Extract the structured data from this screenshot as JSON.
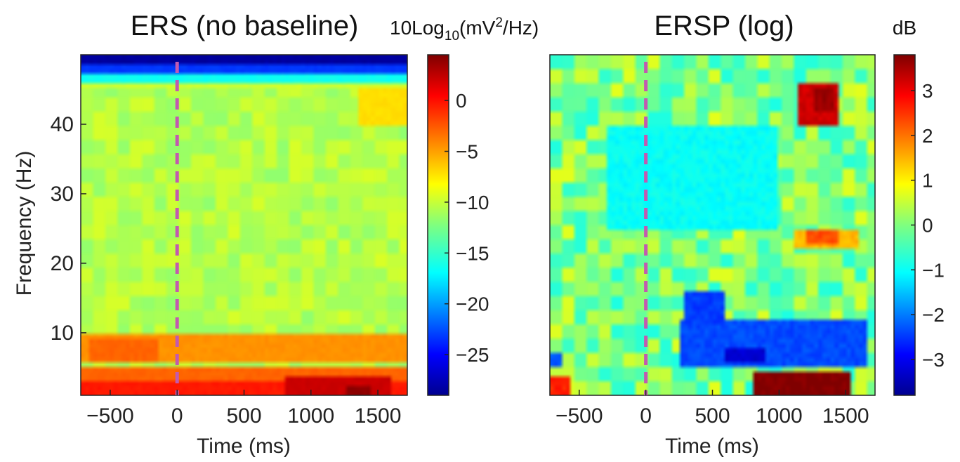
{
  "chart_data": [
    {
      "type": "heatmap",
      "title": "ERS (no baseline)",
      "xlabel": "Time (ms)",
      "ylabel": "Frequency (Hz)",
      "xlim": [
        -720,
        1720
      ],
      "ylim": [
        1,
        50
      ],
      "xticks": [
        -500,
        0,
        500,
        1000,
        1500
      ],
      "xtick_labels": [
        "−500",
        "0",
        "500",
        "1000",
        "1500"
      ],
      "yticks": [
        10,
        20,
        30,
        40
      ],
      "ytick_labels": [
        "10",
        "20",
        "30",
        "40"
      ],
      "colorbar": {
        "label": "10Log10(mV2/Hz)",
        "label_parts": {
          "base": "10Log",
          "sub": "10",
          "mid": "(mV",
          "sup": "2",
          "end": "/Hz)"
        },
        "range": [
          -29,
          4.5
        ],
        "ticks": [
          0,
          -5,
          -10,
          -15,
          -20,
          -25
        ],
        "tick_labels": [
          "0",
          "−5",
          "−10",
          "−15",
          "−20",
          "−25"
        ],
        "colormap": "jet"
      },
      "event_marker": {
        "x": 0,
        "style": "dashed",
        "color": "#c25ab0"
      },
      "features": [
        {
          "t": [
            -720,
            1720
          ],
          "f": [
            48.5,
            50
          ],
          "value": -28
        },
        {
          "t": [
            -720,
            1720
          ],
          "f": [
            47.3,
            48.5
          ],
          "value": -23
        },
        {
          "t": [
            -720,
            1720
          ],
          "f": [
            46.2,
            47.3
          ],
          "value": -16
        },
        {
          "t": [
            -720,
            1720
          ],
          "f": [
            45.5,
            46.2
          ],
          "value": -13
        },
        {
          "t": [
            -720,
            1720
          ],
          "f": [
            45,
            46
          ],
          "value": -9.5
        },
        {
          "t": [
            1350,
            1720
          ],
          "f": [
            40,
            45
          ],
          "value": -7
        },
        {
          "t": [
            -720,
            1720
          ],
          "f": [
            6,
            10
          ],
          "value": -4.5
        },
        {
          "t": [
            -650,
            -150
          ],
          "f": [
            6,
            9
          ],
          "value": -3
        },
        {
          "t": [
            900,
            1720
          ],
          "f": [
            6,
            9
          ],
          "value": -4.5
        },
        {
          "t": [
            -720,
            1720
          ],
          "f": [
            3,
            5
          ],
          "value": -3
        },
        {
          "t": [
            -720,
            1720
          ],
          "f": [
            1,
            3
          ],
          "value": -0.5
        },
        {
          "t": [
            800,
            1600
          ],
          "f": [
            1,
            3.5
          ],
          "value": 2
        },
        {
          "t": [
            1250,
            1450
          ],
          "f": [
            1,
            2.5
          ],
          "value": 4
        }
      ]
    },
    {
      "type": "heatmap",
      "title": "ERSP (log)",
      "xlabel": "Time (ms)",
      "ylabel": "",
      "xlim": [
        -720,
        1720
      ],
      "ylim": [
        1,
        50
      ],
      "xticks": [
        -500,
        0,
        500,
        1000,
        1500
      ],
      "xtick_labels": [
        "−500",
        "0",
        "500",
        "1000",
        "1500"
      ],
      "colorbar": {
        "label": "dB",
        "range": [
          -3.8,
          3.8
        ],
        "ticks": [
          3,
          2,
          1,
          0,
          -1,
          -2,
          -3
        ],
        "tick_labels": [
          "3",
          "2",
          "1",
          "0",
          "−1",
          "−2",
          "−3"
        ],
        "colormap": "jet"
      },
      "event_marker": {
        "x": 0,
        "style": "dashed",
        "color": "#c25ab0"
      },
      "features": [
        {
          "t": [
            1150,
            1450
          ],
          "f": [
            40,
            46
          ],
          "value": 3.2
        },
        {
          "t": [
            1250,
            1400
          ],
          "f": [
            42,
            45
          ],
          "value": 3.6
        },
        {
          "t": [
            1100,
            1600
          ],
          "f": [
            22,
            25
          ],
          "value": 1.5
        },
        {
          "t": [
            1200,
            1450
          ],
          "f": [
            22.5,
            24.5
          ],
          "value": 2.3
        },
        {
          "t": [
            250,
            1650
          ],
          "f": [
            5,
            12
          ],
          "value": -2.3
        },
        {
          "t": [
            300,
            600
          ],
          "f": [
            11,
            16
          ],
          "value": -2.4
        },
        {
          "t": [
            600,
            900
          ],
          "f": [
            6,
            8
          ],
          "value": -3.2
        },
        {
          "t": [
            820,
            1550
          ],
          "f": [
            1,
            4.5
          ],
          "value": 3.8
        },
        {
          "t": [
            -720,
            -560
          ],
          "f": [
            1,
            4
          ],
          "value": 2.6
        },
        {
          "t": [
            -720,
            -620
          ],
          "f": [
            5,
            7
          ],
          "value": -2.2
        },
        {
          "t": [
            -300,
            1000
          ],
          "f": [
            25,
            40
          ],
          "value": -0.9
        }
      ]
    }
  ]
}
